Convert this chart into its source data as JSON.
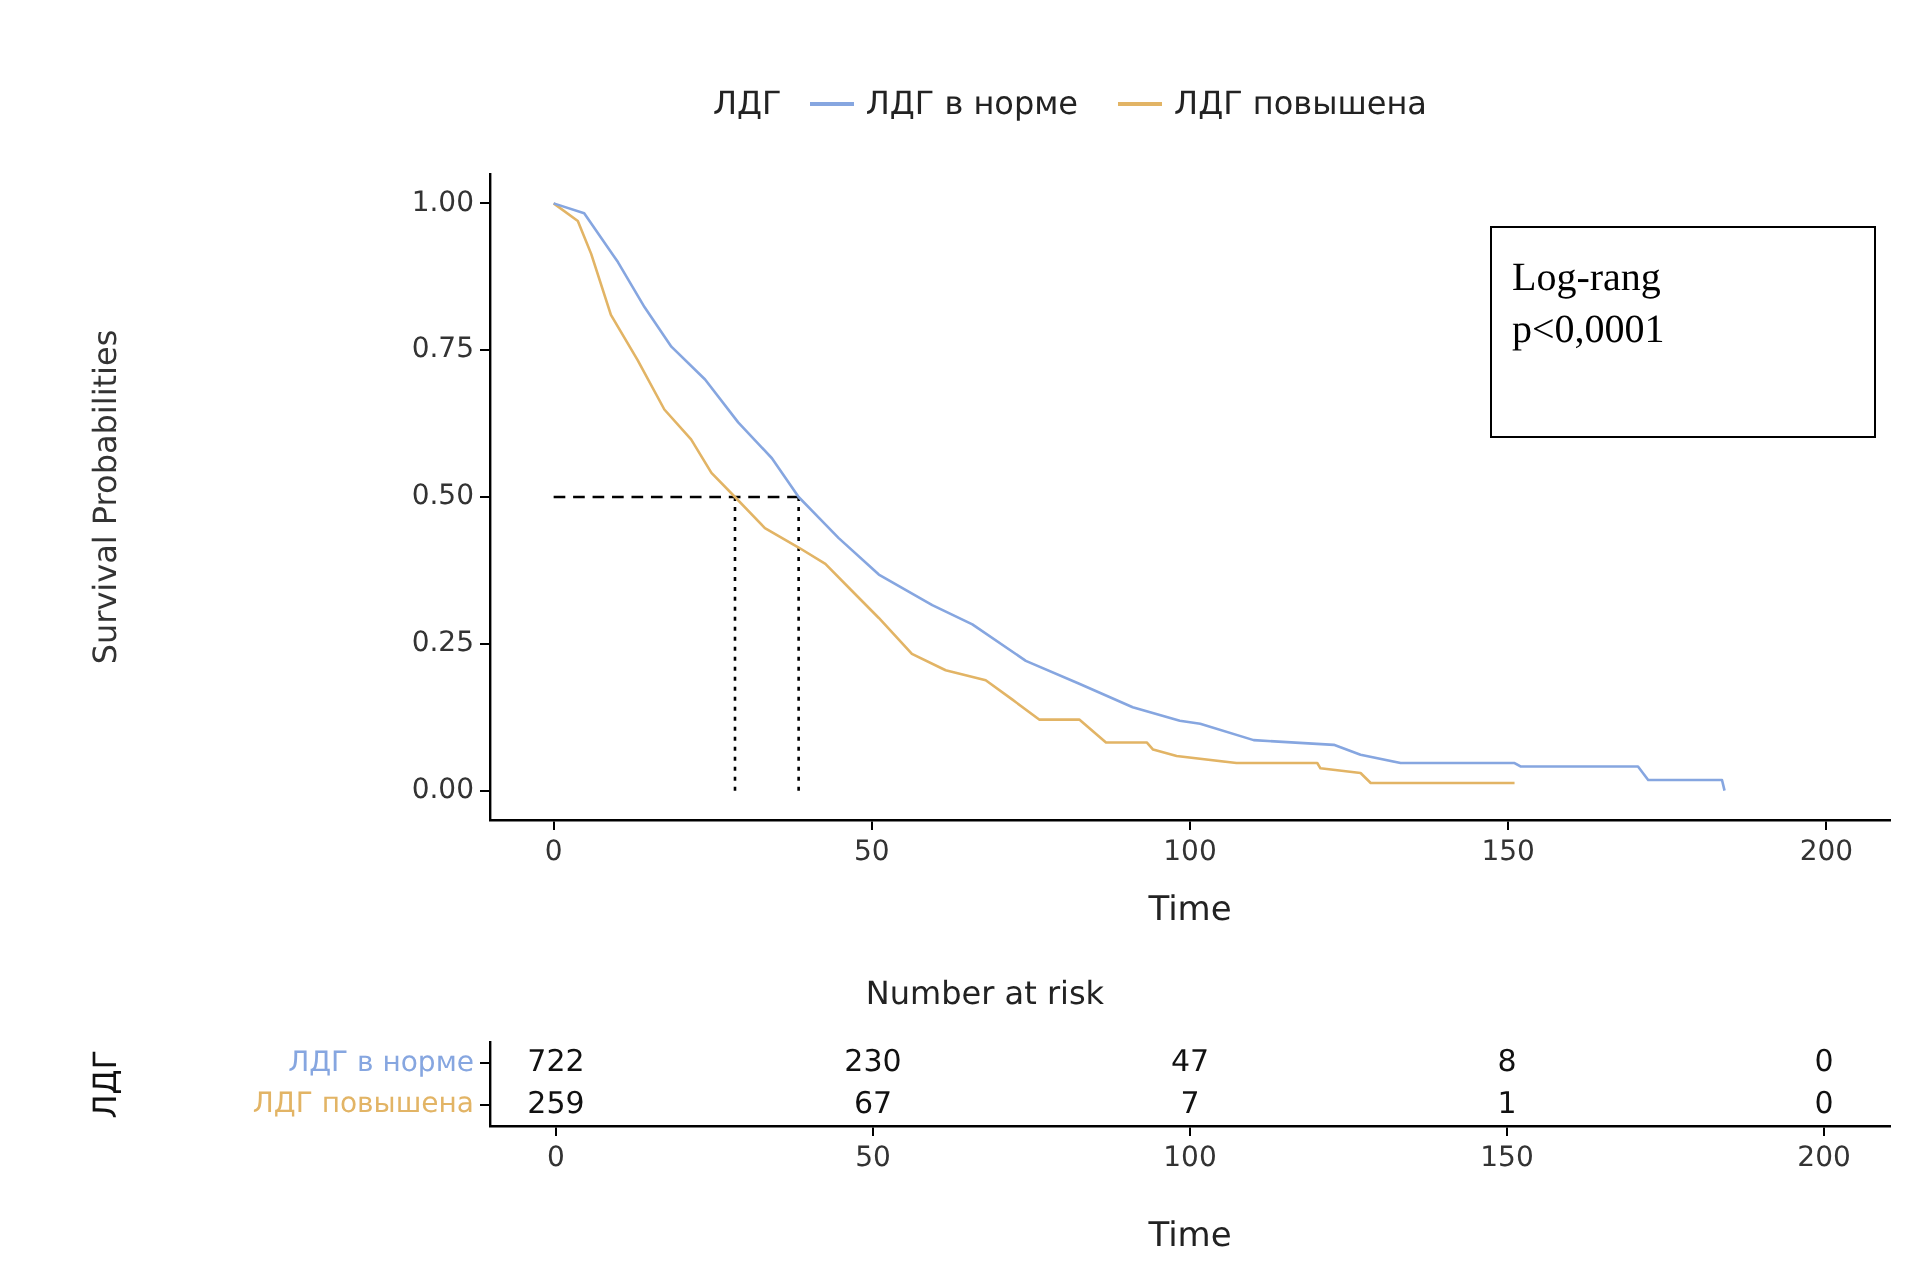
{
  "chart_data": [
    {
      "type": "line",
      "legend_title": "ЛДГ",
      "legend": "top",
      "xlabel": "Time",
      "ylabel": "Survival Probabilities",
      "annotations": [
        "Log-rang",
        "p<0,0001"
      ],
      "grid": false,
      "xlim": [
        -10,
        210
      ],
      "ylim": [
        -0.05,
        1.05
      ],
      "xticks": [
        0,
        50,
        100,
        150,
        200
      ],
      "yticks": [
        {
          "value": 0,
          "label": "0.00"
        },
        {
          "value": 0.25,
          "label": "0.25"
        },
        {
          "value": 0.5,
          "label": "0.50"
        },
        {
          "value": 0.75,
          "label": "0.75"
        },
        {
          "value": 1,
          "label": "1.00"
        }
      ],
      "series": [
        {
          "name": "ЛДГ в норме",
          "color": "#86a6e0",
          "x": [
            0,
            4.8,
            10.1,
            14.3,
            18.5,
            23.8,
            29,
            34.3,
            38.5,
            44.8,
            51.1,
            59.5,
            65.8,
            74.2,
            82.6,
            91,
            98.4,
            101.6,
            110,
            122.6,
            126.8,
            133.1,
            151,
            152,
            170.4,
            172,
            183.6,
            184
          ],
          "values": [
            1,
            0.983,
            0.9,
            0.823,
            0.756,
            0.7,
            0.627,
            0.566,
            0.5,
            0.43,
            0.368,
            0.316,
            0.283,
            0.221,
            0.182,
            0.142,
            0.119,
            0.114,
            0.086,
            0.078,
            0.061,
            0.047,
            0.047,
            0.041,
            0.041,
            0.018,
            0.018,
            0
          ]
        },
        {
          "name": "ЛДГ повышена",
          "color": "#e2b465",
          "x": [
            0,
            3.8,
            5.9,
            9,
            13.2,
            17.4,
            21.6,
            24.8,
            28.5,
            33.2,
            38.5,
            42.7,
            46.9,
            51.1,
            56.3,
            61.6,
            67.9,
            72.1,
            76.3,
            82.6,
            86.8,
            93.2,
            94.2,
            97.9,
            107.3,
            120,
            120.5,
            126.8,
            128.4,
            151
          ],
          "values": [
            1,
            0.97,
            0.914,
            0.81,
            0.733,
            0.649,
            0.598,
            0.541,
            0.5,
            0.447,
            0.414,
            0.386,
            0.34,
            0.294,
            0.233,
            0.205,
            0.188,
            0.155,
            0.121,
            0.121,
            0.082,
            0.082,
            0.07,
            0.059,
            0.047,
            0.047,
            0.038,
            0.03,
            0.013,
            0.013
          ]
        },
        {
          "color": "#000000",
          "line_style": "dashed",
          "x": [
            0,
            38.5
          ],
          "values": [
            0.5,
            0.5
          ]
        },
        {
          "color": "#000000",
          "line_style": "dotted",
          "x": [
            28.5,
            28.5
          ],
          "values": [
            0,
            0.5
          ]
        },
        {
          "color": "#000000",
          "line_style": "dotted",
          "x": [
            38.5,
            38.5
          ],
          "values": [
            0,
            0.5
          ]
        }
      ]
    },
    {
      "type": "heatmap",
      "title": "Number at risk",
      "ylabel": "ЛДГ",
      "xlabel": "Time",
      "data_labels": true,
      "categories": [
        "0",
        "50",
        "100",
        "150",
        "200"
      ],
      "y_categories": [
        "ЛДГ в норме",
        "ЛДГ повышена"
      ],
      "colors": [
        "#86a6e0",
        "#e2b465"
      ],
      "cells": [
        [
          722,
          230,
          47,
          8,
          0
        ],
        [
          259,
          67,
          7,
          1,
          0
        ]
      ]
    }
  ]
}
